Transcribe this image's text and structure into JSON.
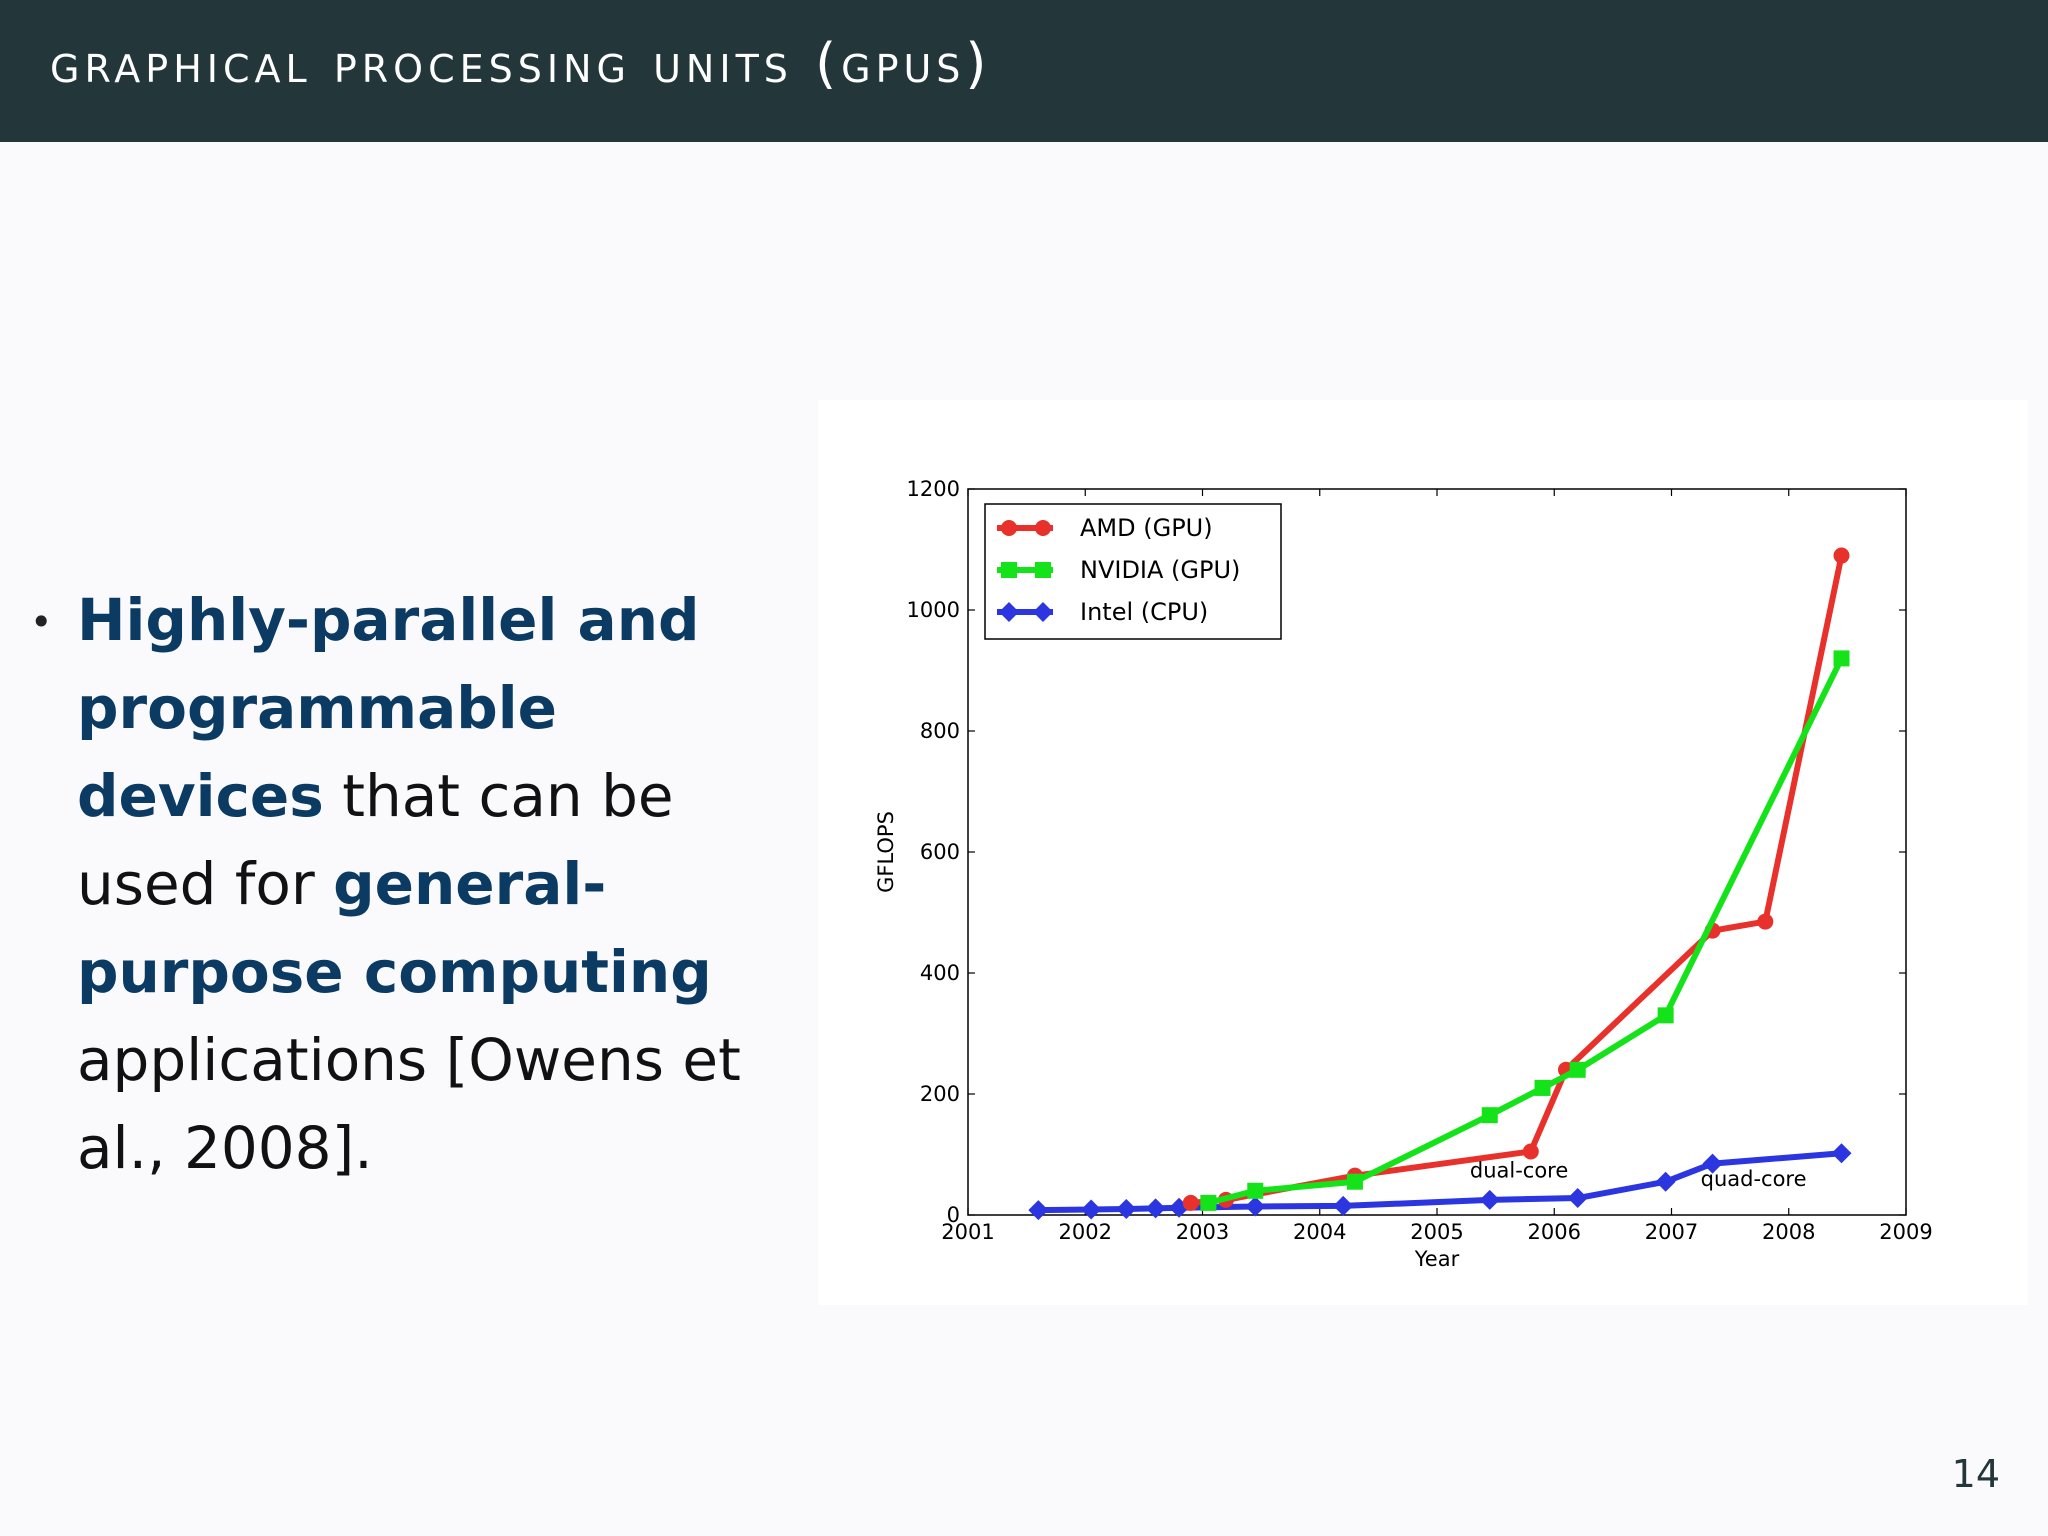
{
  "slide": {
    "title": "graphical processing units (gpus)",
    "page_number": "14",
    "bullet": {
      "bold1": "Highly-parallel and programmable devices",
      "plain1": " that can be used for ",
      "bold2": "general-purpose computing",
      "plain2": " applications [Owens et al., 2008]."
    }
  },
  "colors": {
    "header_bg": "#23373b",
    "emphasis": "#0b3a62",
    "amd": "#e8312a",
    "nvidia": "#15e31a",
    "intel": "#2b35e0"
  },
  "chart_data": {
    "type": "line",
    "xlabel": "Year",
    "ylabel": "GFLOPS",
    "xlim": [
      2001,
      2009
    ],
    "ylim": [
      0,
      1200
    ],
    "xticks": [
      2001,
      2002,
      2003,
      2004,
      2005,
      2006,
      2007,
      2008,
      2009
    ],
    "yticks": [
      0,
      200,
      400,
      600,
      800,
      1000,
      1200
    ],
    "legend_placement": "top-left",
    "grid": false,
    "series": [
      {
        "name": "AMD (GPU)",
        "color": "#e8312a",
        "marker": "circle",
        "x": [
          2002.9,
          2003.2,
          2004.3,
          2005.8,
          2006.1,
          2007.35,
          2007.8,
          2008.45
        ],
        "y": [
          20,
          25,
          65,
          105,
          240,
          470,
          485,
          1090
        ]
      },
      {
        "name": "NVIDIA (GPU)",
        "color": "#15e31a",
        "marker": "square",
        "x": [
          2003.05,
          2003.45,
          2004.3,
          2005.45,
          2005.9,
          2006.2,
          2006.95,
          2008.45
        ],
        "y": [
          20,
          40,
          55,
          165,
          210,
          240,
          330,
          920
        ]
      },
      {
        "name": "Intel (CPU)",
        "color": "#2b35e0",
        "marker": "diamond",
        "x": [
          2001.6,
          2002.05,
          2002.35,
          2002.6,
          2002.8,
          2003.45,
          2004.2,
          2005.45,
          2006.2,
          2006.95,
          2007.35,
          2008.45
        ],
        "y": [
          8,
          9,
          10,
          11,
          12,
          14,
          15,
          25,
          28,
          55,
          85,
          102
        ]
      }
    ],
    "annotations": [
      {
        "text": "dual-core",
        "x": 2005.7,
        "y": 62
      },
      {
        "text": "quad-core",
        "x": 2007.7,
        "y": 48
      }
    ]
  }
}
